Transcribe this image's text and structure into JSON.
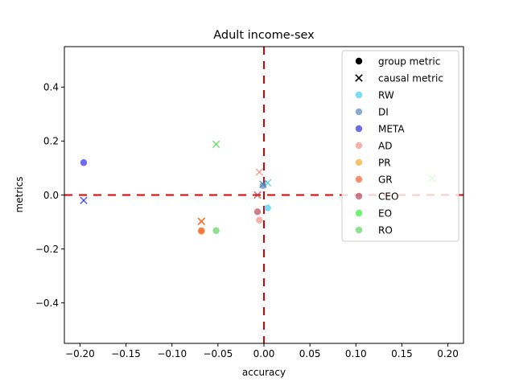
{
  "chart_data": {
    "type": "scatter",
    "title": "Adult income-sex",
    "xlabel": "accuracy",
    "ylabel": "metrics",
    "xlim": [
      -0.217,
      0.217
    ],
    "ylim": [
      -0.55,
      0.55
    ],
    "xticks": [
      -0.2,
      -0.15,
      -0.1,
      -0.05,
      0.0,
      0.05,
      0.1,
      0.15,
      0.2
    ],
    "xtick_labels": [
      "−0.20",
      "−0.15",
      "−0.10",
      "−0.05",
      "0.00",
      "0.05",
      "0.10",
      "0.15",
      "0.20"
    ],
    "yticks": [
      -0.4,
      -0.2,
      0.0,
      0.2,
      0.4
    ],
    "ytick_labels": [
      "−0.4",
      "−0.2",
      "0.0",
      "0.2",
      "0.4"
    ],
    "grid": false,
    "legend_position": "top-right",
    "reference_lines": [
      {
        "orientation": "horizontal",
        "value": 0.0,
        "color": "#dd0000",
        "style": "dashed"
      },
      {
        "orientation": "vertical",
        "value": 0.0,
        "color": "#dd0000",
        "style": "dashed"
      }
    ],
    "marker_legend": [
      {
        "label": "group metric",
        "marker": "circle"
      },
      {
        "label": "causal metric",
        "marker": "x"
      }
    ],
    "series": [
      {
        "name": "RW",
        "color": "#33c8f0",
        "points": [
          {
            "x": 0.004,
            "y": -0.048,
            "marker": "circle"
          },
          {
            "x": 0.004,
            "y": 0.045,
            "marker": "x"
          }
        ]
      },
      {
        "name": "DI",
        "color": "#4a7fb0",
        "points": [
          {
            "x": -0.001,
            "y": 0.035,
            "marker": "circle"
          },
          {
            "x": -0.001,
            "y": 0.04,
            "marker": "x"
          }
        ]
      },
      {
        "name": "META",
        "color": "#1f1fe0",
        "points": [
          {
            "x": -0.196,
            "y": 0.12,
            "marker": "circle"
          },
          {
            "x": -0.196,
            "y": -0.02,
            "marker": "x"
          }
        ]
      },
      {
        "name": "AD",
        "color": "#f08878",
        "points": [
          {
            "x": -0.005,
            "y": -0.093,
            "marker": "circle"
          },
          {
            "x": -0.005,
            "y": 0.085,
            "marker": "x"
          }
        ]
      },
      {
        "name": "PR",
        "color": "#f7a21b",
        "points": [
          {
            "x": -0.068,
            "y": -0.135,
            "marker": "circle"
          },
          {
            "x": -0.068,
            "y": -0.097,
            "marker": "x"
          }
        ]
      },
      {
        "name": "GR",
        "color": "#f4511e",
        "points": [
          {
            "x": -0.068,
            "y": -0.132,
            "marker": "circle"
          },
          {
            "x": -0.068,
            "y": -0.098,
            "marker": "x"
          }
        ]
      },
      {
        "name": "CEO",
        "color": "#b03a4a",
        "points": [
          {
            "x": -0.007,
            "y": -0.062,
            "marker": "circle"
          },
          {
            "x": -0.007,
            "y": 0.0,
            "marker": "x"
          }
        ]
      },
      {
        "name": "EO",
        "color": "#22ee22",
        "points": [
          {
            "x": 0.183,
            "y": 0.062,
            "marker": "x"
          }
        ]
      },
      {
        "name": "RO",
        "color": "#4fd24f",
        "points": [
          {
            "x": -0.052,
            "y": -0.132,
            "marker": "circle"
          },
          {
            "x": -0.052,
            "y": 0.188,
            "marker": "x"
          }
        ]
      }
    ]
  }
}
